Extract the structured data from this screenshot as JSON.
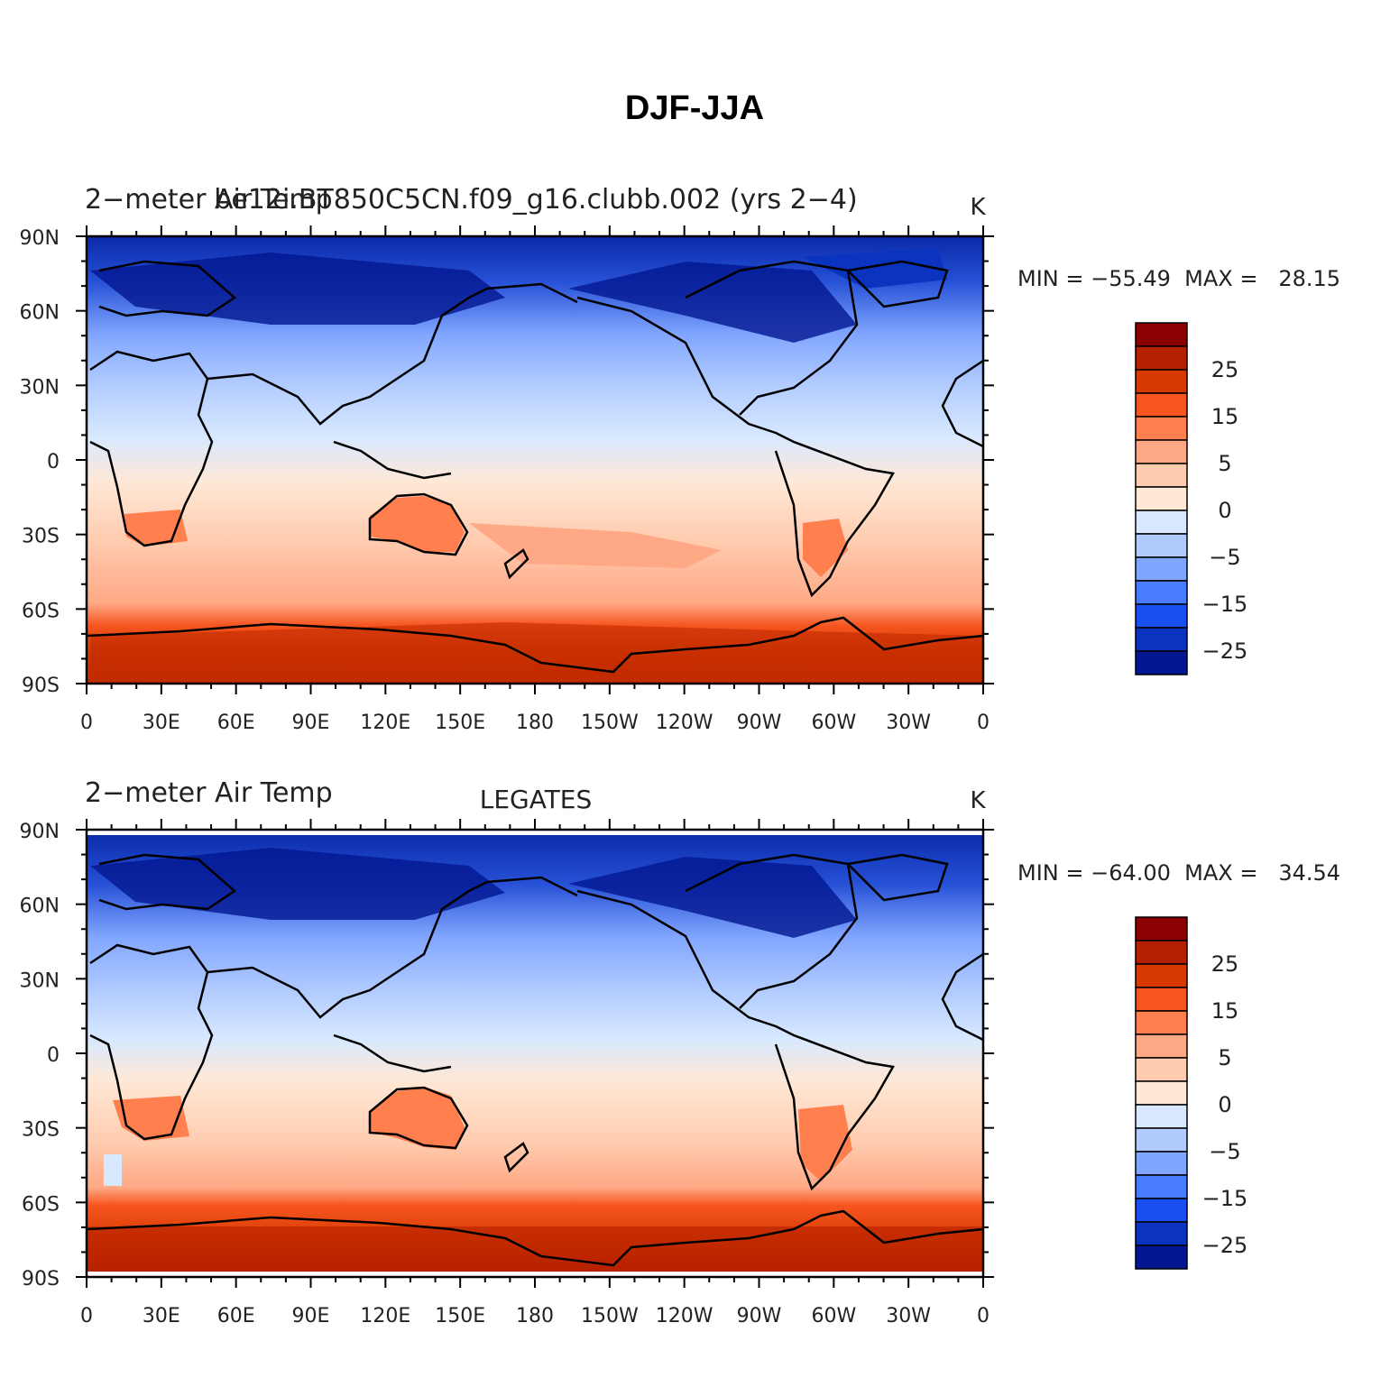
{
  "figure_title": "DJF-JJA",
  "panels": [
    {
      "left_label": "2−meter Air Temp",
      "center_label": "be12i.BT850C5CN.f09_g16.clubb.002 (yrs 2−4)",
      "units": "K",
      "stats": "MIN = −55.49  MAX =   28.15"
    },
    {
      "left_label": "2−meter Air Temp",
      "center_label": "LEGATES",
      "units": "K",
      "stats": "MIN = −64.00  MAX =   34.54"
    }
  ],
  "lat_ticks": [
    "90N",
    "60N",
    "30N",
    "0",
    "30S",
    "60S",
    "90S"
  ],
  "lon_ticks": [
    "0",
    "30E",
    "60E",
    "90E",
    "120E",
    "150E",
    "180",
    "150W",
    "120W",
    "90W",
    "60W",
    "30W",
    "0"
  ],
  "colorbar": {
    "colors_top_to_bottom": [
      "#8b0000",
      "#b52000",
      "#d63a00",
      "#f65520",
      "#ff7f4f",
      "#ffa885",
      "#ffccb0",
      "#ffe8d6",
      "#d8e9ff",
      "#b1cbff",
      "#81a6ff",
      "#4a7bff",
      "#1a4fef",
      "#0a34bf",
      "#031790"
    ],
    "labels_top_to_bottom": [
      "25",
      "15",
      "5",
      "0",
      "−5",
      "−15",
      "−25"
    ]
  }
}
